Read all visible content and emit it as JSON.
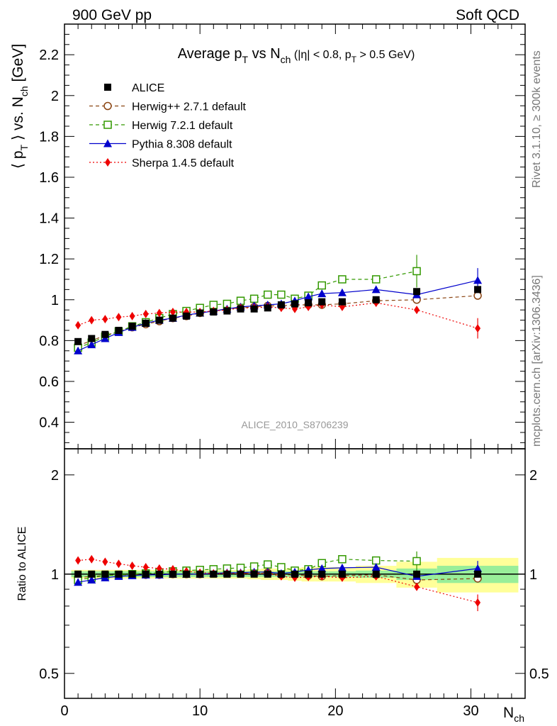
{
  "header": {
    "left": "900 GeV pp",
    "right": "Soft QCD"
  },
  "side": {
    "rivet": "Rivet 3.1.10, ≥ 300k events",
    "mcplots": "mcplots.cern.ch [arXiv:1306.3436]"
  },
  "chart_data": {
    "type": "scatter",
    "title": "Average pT vs Nch (|η| < 0.8, pT > 0.5 GeV)",
    "watermark": "ALICE_2010_S8706239",
    "xlabel": "Nch",
    "ylabel": "⟨ pT ⟩ vs. Nch [GeV]",
    "ratio_ylabel": "Ratio to ALICE",
    "xlim": [
      0,
      34
    ],
    "ylim": [
      0.27,
      2.35
    ],
    "ratio_ylim": [
      0.42,
      2.4
    ],
    "ratio_log": true,
    "x_ticks": [
      0,
      10,
      20,
      30
    ],
    "y_ticks": [
      0.4,
      0.6,
      0.8,
      1,
      1.2,
      1.4,
      1.6,
      1.8,
      2,
      2.2
    ],
    "ratio_ticks": [
      0.5,
      1,
      2
    ],
    "colors": {
      "alice": "#000000",
      "herwigpp": "#8b4513",
      "herwig7": "#339900",
      "pythia": "#0000cc",
      "sherpa": "#ee0000",
      "band_outer": "#ffff99",
      "band_inner": "#99ee99"
    },
    "data_band": {
      "x_edges": [
        0.5,
        1.5,
        2.5,
        3.5,
        4.5,
        5.5,
        6.5,
        7.5,
        8.5,
        9.5,
        10.5,
        11.5,
        12.5,
        13.5,
        14.5,
        15.5,
        16.5,
        17.5,
        18.5,
        19.5,
        21.5,
        24.5,
        27.5,
        33.5
      ],
      "inner": [
        0.02,
        0.02,
        0.02,
        0.02,
        0.02,
        0.02,
        0.02,
        0.02,
        0.02,
        0.02,
        0.02,
        0.02,
        0.02,
        0.02,
        0.02,
        0.02,
        0.02,
        0.02,
        0.02,
        0.02,
        0.025,
        0.04,
        0.06
      ],
      "outer": [
        0.03,
        0.03,
        0.03,
        0.03,
        0.03,
        0.03,
        0.03,
        0.03,
        0.03,
        0.03,
        0.03,
        0.03,
        0.03,
        0.035,
        0.04,
        0.04,
        0.045,
        0.05,
        0.05,
        0.05,
        0.06,
        0.09,
        0.12
      ]
    },
    "series": [
      {
        "name": "ALICE",
        "key": "alice",
        "marker": "square-filled",
        "line": "none",
        "x": [
          1,
          2,
          3,
          4,
          5,
          6,
          7,
          8,
          9,
          10,
          11,
          12,
          13,
          14,
          15,
          16,
          17,
          18,
          19,
          20.5,
          23,
          26,
          30.5
        ],
        "y": [
          0.795,
          0.81,
          0.83,
          0.85,
          0.87,
          0.885,
          0.9,
          0.91,
          0.92,
          0.935,
          0.94,
          0.945,
          0.955,
          0.955,
          0.96,
          0.975,
          0.98,
          0.985,
          0.99,
          0.99,
          1.0,
          1.04,
          1.05
        ],
        "ratio": [
          1,
          1,
          1,
          1,
          1,
          1,
          1,
          1,
          1,
          1,
          1,
          1,
          1,
          1,
          1,
          1,
          1,
          1,
          1,
          1,
          1,
          1,
          1
        ]
      },
      {
        "name": "Herwig++ 2.7.1 default",
        "key": "herwigpp",
        "marker": "circle-open",
        "line": "dashed",
        "x": [
          1,
          2,
          3,
          4,
          5,
          6,
          7,
          8,
          9,
          10,
          11,
          12,
          13,
          14,
          15,
          16,
          17,
          18,
          19,
          20.5,
          23,
          26,
          30.5
        ],
        "y": [
          0.775,
          0.8,
          0.825,
          0.845,
          0.865,
          0.88,
          0.895,
          0.91,
          0.92,
          0.935,
          0.945,
          0.955,
          0.96,
          0.965,
          0.97,
          0.97,
          0.975,
          0.975,
          0.975,
          0.98,
          0.995,
          1.0,
          1.02
        ],
        "ratio": [
          0.975,
          0.985,
          0.99,
          0.995,
          0.995,
          0.995,
          0.995,
          1.0,
          1.0,
          1.0,
          1.005,
          1.01,
          1.005,
          1.01,
          1.01,
          0.995,
          0.995,
          0.99,
          0.985,
          0.99,
          0.995,
          0.96,
          0.97
        ]
      },
      {
        "name": "Herwig 7.2.1 default",
        "key": "herwig7",
        "marker": "square-open",
        "line": "dashed",
        "x": [
          1,
          2,
          3,
          4,
          5,
          6,
          7,
          8,
          9,
          10,
          11,
          12,
          13,
          14,
          15,
          16,
          17,
          18,
          19,
          20.5,
          23,
          26,
          30.5
        ],
        "y": [
          0.765,
          0.79,
          0.82,
          0.845,
          0.87,
          0.89,
          0.91,
          0.93,
          0.945,
          0.96,
          0.975,
          0.98,
          0.995,
          1.005,
          1.025,
          1.025,
          1.005,
          1.02,
          1.07,
          1.1,
          1.1,
          1.14,
          null
        ],
        "ratio": [
          0.96,
          0.975,
          0.99,
          0.995,
          1.0,
          1.005,
          1.01,
          1.02,
          1.025,
          1.03,
          1.035,
          1.04,
          1.045,
          1.055,
          1.07,
          1.05,
          1.025,
          1.035,
          1.08,
          1.11,
          1.1,
          1.095,
          null
        ],
        "err_last": 0.08
      },
      {
        "name": "Pythia 8.308 default",
        "key": "pythia",
        "marker": "triangle-filled",
        "line": "solid",
        "x": [
          1,
          2,
          3,
          4,
          5,
          6,
          7,
          8,
          9,
          10,
          11,
          12,
          13,
          14,
          15,
          16,
          17,
          18,
          19,
          20.5,
          23,
          26,
          30.5
        ],
        "y": [
          0.75,
          0.78,
          0.81,
          0.84,
          0.865,
          0.885,
          0.9,
          0.91,
          0.925,
          0.935,
          0.945,
          0.955,
          0.965,
          0.97,
          0.975,
          0.98,
          0.995,
          1.015,
          1.03,
          1.035,
          1.05,
          1.025,
          1.095
        ],
        "ratio": [
          0.945,
          0.96,
          0.975,
          0.985,
          0.99,
          0.995,
          0.995,
          1.0,
          1.0,
          1.0,
          1.005,
          1.01,
          1.01,
          1.015,
          1.015,
          1.005,
          1.015,
          1.03,
          1.04,
          1.045,
          1.05,
          0.985,
          1.04
        ],
        "err_last": 0.06
      },
      {
        "name": "Sherpa 1.4.5 default",
        "key": "sherpa",
        "marker": "diamond-filled",
        "line": "dotted",
        "x": [
          1,
          2,
          3,
          4,
          5,
          6,
          7,
          8,
          9,
          10,
          11,
          12,
          13,
          14,
          15,
          16,
          17,
          18,
          19,
          20.5,
          23,
          26,
          30.5
        ],
        "y": [
          0.875,
          0.9,
          0.905,
          0.915,
          0.92,
          0.93,
          0.935,
          0.94,
          0.94,
          0.94,
          0.945,
          0.95,
          0.96,
          0.96,
          0.965,
          0.96,
          0.955,
          0.965,
          0.975,
          0.965,
          0.985,
          0.95,
          0.86
        ],
        "ratio": [
          1.1,
          1.11,
          1.09,
          1.075,
          1.06,
          1.05,
          1.04,
          1.035,
          1.02,
          1.01,
          1.005,
          1.005,
          1.005,
          1.005,
          1.005,
          0.985,
          0.975,
          0.98,
          0.985,
          0.975,
          0.985,
          0.915,
          0.82
        ],
        "err_last": 0.05
      }
    ]
  }
}
